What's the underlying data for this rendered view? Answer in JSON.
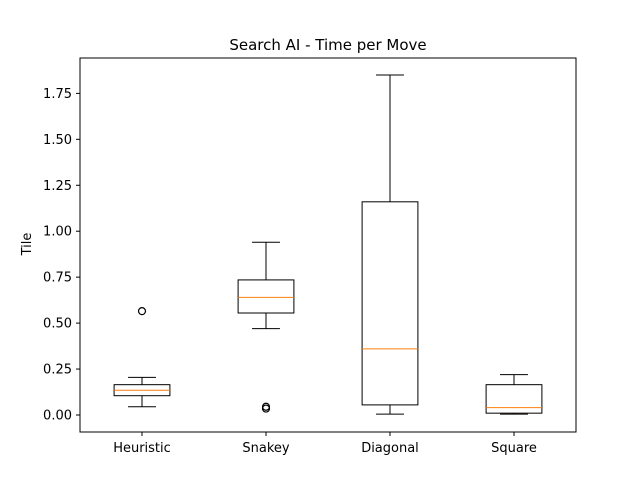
{
  "chart_data": {
    "type": "box",
    "title": "Search AI - Time per Move",
    "xlabel": "",
    "ylabel": "Tile",
    "ylim": [
      -0.0925,
      1.9425
    ],
    "yticks": [
      "0.00",
      "0.25",
      "0.50",
      "0.75",
      "1.00",
      "1.25",
      "1.50",
      "1.75"
    ],
    "grid": false,
    "categories": [
      "Heuristic",
      "Snakey",
      "Diagonal",
      "Square"
    ],
    "boxes": [
      {
        "label": "Heuristic",
        "whisker_low": 0.045,
        "q1": 0.105,
        "median": 0.135,
        "q3": 0.165,
        "whisker_high": 0.205,
        "outliers": [
          0.565
        ]
      },
      {
        "label": "Snakey",
        "whisker_low": 0.47,
        "q1": 0.555,
        "median": 0.64,
        "q3": 0.735,
        "whisker_high": 0.94,
        "outliers": [
          0.035,
          0.045
        ]
      },
      {
        "label": "Diagonal",
        "whisker_low": 0.005,
        "q1": 0.055,
        "median": 0.36,
        "q3": 1.16,
        "whisker_high": 1.85,
        "outliers": []
      },
      {
        "label": "Square",
        "whisker_low": 0.005,
        "q1": 0.01,
        "median": 0.04,
        "q3": 0.165,
        "whisker_high": 0.22,
        "outliers": []
      }
    ],
    "colors": {
      "box": "#000000",
      "median": "#ff7f0e",
      "outlier": "#000000"
    }
  }
}
